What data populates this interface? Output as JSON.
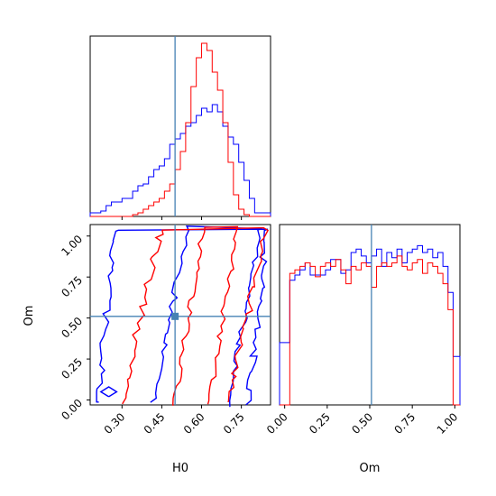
{
  "chart_data": {
    "type": "corner",
    "parameters": [
      "H0",
      "Om"
    ],
    "truths": {
      "H0": 0.5,
      "Om": 0.51
    },
    "truth_color": "#4682b4",
    "series": [
      {
        "color": "#0000ff"
      },
      {
        "color": "#ff0000"
      }
    ],
    "panels": {
      "h0_hist": {
        "type": "histogram",
        "xlim": [
          0.18,
          0.86
        ],
        "bin_edges": [
          0.18,
          0.2,
          0.22,
          0.24,
          0.26,
          0.28,
          0.3,
          0.32,
          0.34,
          0.36,
          0.38,
          0.4,
          0.42,
          0.44,
          0.46,
          0.48,
          0.5,
          0.52,
          0.54,
          0.56,
          0.58,
          0.6,
          0.62,
          0.64,
          0.66,
          0.68,
          0.7,
          0.72,
          0.74,
          0.76,
          0.78,
          0.8,
          0.82,
          0.84,
          0.86
        ],
        "blue": [
          2,
          2,
          3,
          6,
          8,
          8,
          10,
          10,
          14,
          17,
          18,
          22,
          26,
          28,
          32,
          40,
          43,
          46,
          50,
          52,
          56,
          60,
          58,
          62,
          58,
          50,
          44,
          40,
          30,
          20,
          10,
          2,
          2,
          2
        ],
        "red": [
          0,
          0,
          0,
          0,
          0,
          0,
          0,
          0,
          1,
          2,
          4,
          6,
          8,
          10,
          14,
          18,
          26,
          36,
          52,
          72,
          88,
          96,
          92,
          80,
          70,
          52,
          30,
          12,
          4,
          1,
          0,
          0,
          0,
          0
        ]
      },
      "om_hist": {
        "type": "histogram",
        "xlim": [
          -0.03,
          1.03
        ],
        "bin_edges": [
          -0.03,
          0.0,
          0.03,
          0.06,
          0.09,
          0.12,
          0.15,
          0.18,
          0.21,
          0.24,
          0.27,
          0.3,
          0.33,
          0.36,
          0.39,
          0.42,
          0.45,
          0.48,
          0.51,
          0.54,
          0.57,
          0.6,
          0.63,
          0.66,
          0.69,
          0.72,
          0.75,
          0.78,
          0.81,
          0.84,
          0.87,
          0.9,
          0.93,
          0.96,
          0.99,
          1.02,
          1.03
        ],
        "blue": [
          36,
          36,
          72,
          75,
          78,
          82,
          75,
          75,
          75,
          78,
          84,
          84,
          76,
          78,
          88,
          90,
          86,
          82,
          86,
          90,
          80,
          88,
          85,
          90,
          82,
          88,
          90,
          92,
          88,
          90,
          85,
          88,
          80,
          65,
          28,
          28
        ],
        "red": [
          0,
          0,
          76,
          78,
          80,
          82,
          80,
          74,
          80,
          82,
          80,
          84,
          78,
          70,
          80,
          78,
          82,
          80,
          68,
          80,
          82,
          80,
          82,
          86,
          80,
          78,
          82,
          84,
          76,
          82,
          80,
          76,
          70,
          55,
          0,
          0
        ]
      },
      "joint": {
        "type": "contour",
        "xlim": [
          0.18,
          0.86
        ],
        "ylim": [
          -0.03,
          1.07
        ],
        "xticks": [
          0.3,
          0.45,
          0.6,
          0.75
        ],
        "yticks": [
          0.0,
          0.25,
          0.5,
          0.75,
          1.0
        ]
      }
    },
    "tick_labels": {
      "h0": [
        "0.30",
        "0.45",
        "0.60",
        "0.75"
      ],
      "om_y": [
        "0.00",
        "0.25",
        "0.50",
        "0.75",
        "1.00"
      ],
      "om_x": [
        "0.00",
        "0.25",
        "0.50",
        "0.75",
        "1.00"
      ]
    },
    "axis_labels": {
      "joint_x": "H0",
      "joint_y": "Om",
      "om_x": "Om"
    }
  }
}
